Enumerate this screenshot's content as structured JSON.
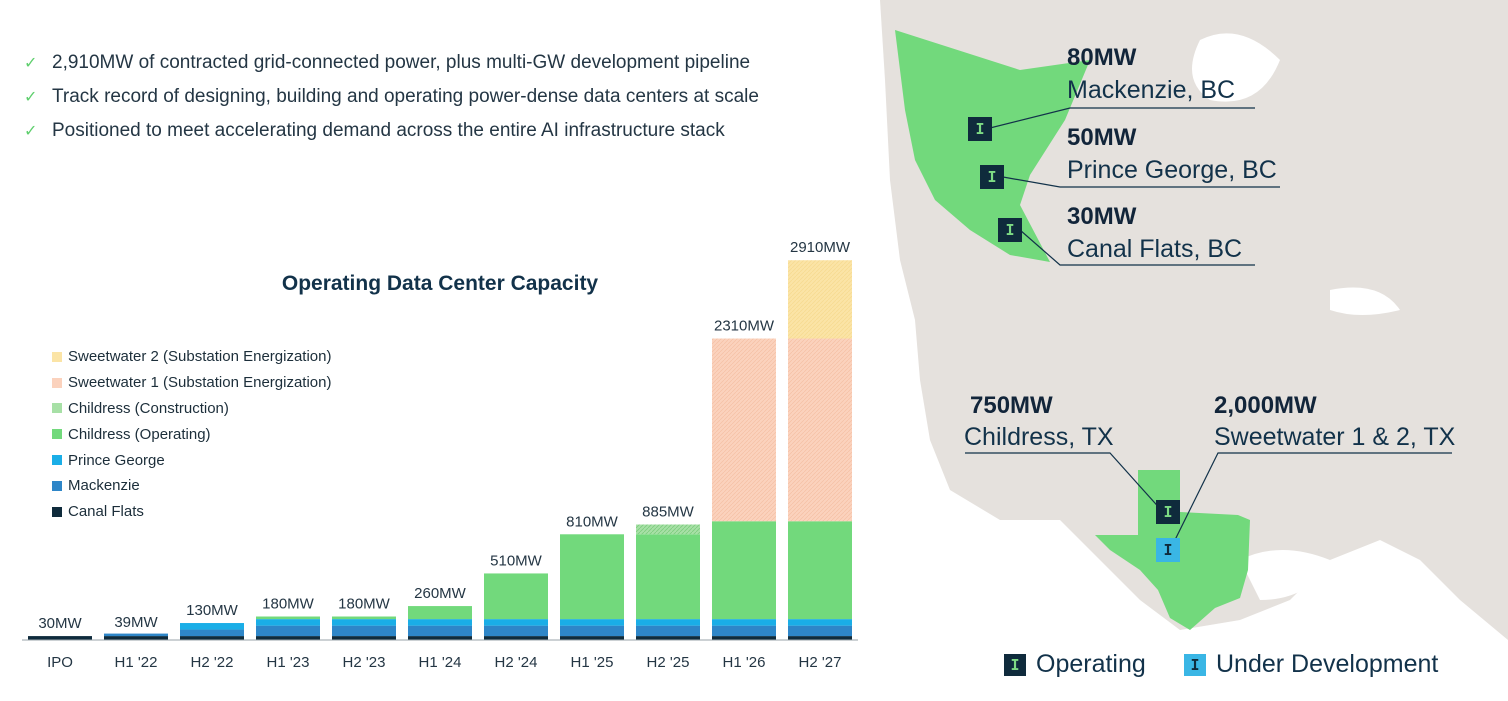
{
  "bullets": [
    "2,910MW of contracted grid-connected power, plus multi-GW development pipeline",
    "Track record of designing, building and operating power-dense data centers at scale",
    "Positioned to meet accelerating demand across the entire AI infrastructure stack"
  ],
  "colors": {
    "sweetwater2": "#fbe4a6",
    "sweetwater1": "#fbd2bd",
    "childress_construction": "#a7e0a6",
    "childress_operating": "#72d97c",
    "prince_george": "#1aaee7",
    "mackenzie": "#2e86c8",
    "canal_flats": "#0f2b3c",
    "map_land": "#e5e1dd",
    "map_highlight": "#72d97c"
  },
  "chart_data": {
    "type": "bar",
    "title": "Operating Data Center Capacity",
    "categories": [
      "IPO",
      "H1 '22",
      "H2 '22",
      "H1 '23",
      "H2 '23",
      "H1 '24",
      "H2 '24",
      "H1 '25",
      "H2 '25",
      "H1 '26",
      "H2 '27"
    ],
    "totals_labels": [
      "30MW",
      "39MW",
      "130MW",
      "180MW",
      "180MW",
      "260MW",
      "510MW",
      "810MW",
      "885MW",
      "2310MW",
      "2910MW"
    ],
    "ylim": [
      0,
      2950
    ],
    "stack_order": [
      "Canal Flats",
      "Mackenzie",
      "Prince George",
      "Childress (Operating)",
      "Childress (Construction)",
      "Sweetwater 1 (Substation Energization)",
      "Sweetwater 2 (Substation Energization)"
    ],
    "legend_order": [
      "Sweetwater 2 (Substation Energization)",
      "Sweetwater 1 (Substation Energization)",
      "Childress (Construction)",
      "Childress (Operating)",
      "Prince George",
      "Mackenzie",
      "Canal Flats"
    ],
    "series": [
      {
        "name": "Canal Flats",
        "values": [
          30,
          30,
          30,
          30,
          30,
          30,
          30,
          30,
          30,
          30,
          30
        ]
      },
      {
        "name": "Mackenzie",
        "values": [
          0,
          9,
          50,
          80,
          80,
          80,
          80,
          80,
          80,
          80,
          80
        ]
      },
      {
        "name": "Prince George",
        "values": [
          0,
          0,
          50,
          50,
          50,
          50,
          50,
          50,
          50,
          50,
          50
        ]
      },
      {
        "name": "Childress (Operating)",
        "values": [
          0,
          0,
          0,
          20,
          20,
          100,
          350,
          650,
          650,
          750,
          750
        ]
      },
      {
        "name": "Childress (Construction)",
        "values": [
          0,
          0,
          0,
          0,
          0,
          0,
          0,
          0,
          75,
          0,
          0
        ]
      },
      {
        "name": "Sweetwater 1 (Substation Energization)",
        "values": [
          0,
          0,
          0,
          0,
          0,
          0,
          0,
          0,
          0,
          1400,
          1400
        ]
      },
      {
        "name": "Sweetwater 2 (Substation Energization)",
        "values": [
          0,
          0,
          0,
          0,
          0,
          0,
          0,
          0,
          0,
          0,
          600
        ]
      }
    ]
  },
  "map": {
    "locations": [
      {
        "mw": "80MW",
        "name": "Mackenzie, BC"
      },
      {
        "mw": "50MW",
        "name": "Prince George, BC"
      },
      {
        "mw": "30MW",
        "name": "Canal Flats, BC"
      },
      {
        "mw": "750MW",
        "name": "Childress, TX"
      },
      {
        "mw": "2,000MW",
        "name": "Sweetwater 1 & 2, TX"
      }
    ],
    "badge_glyph": "I",
    "legend": {
      "operating": "Operating",
      "under_development": "Under Development"
    }
  }
}
